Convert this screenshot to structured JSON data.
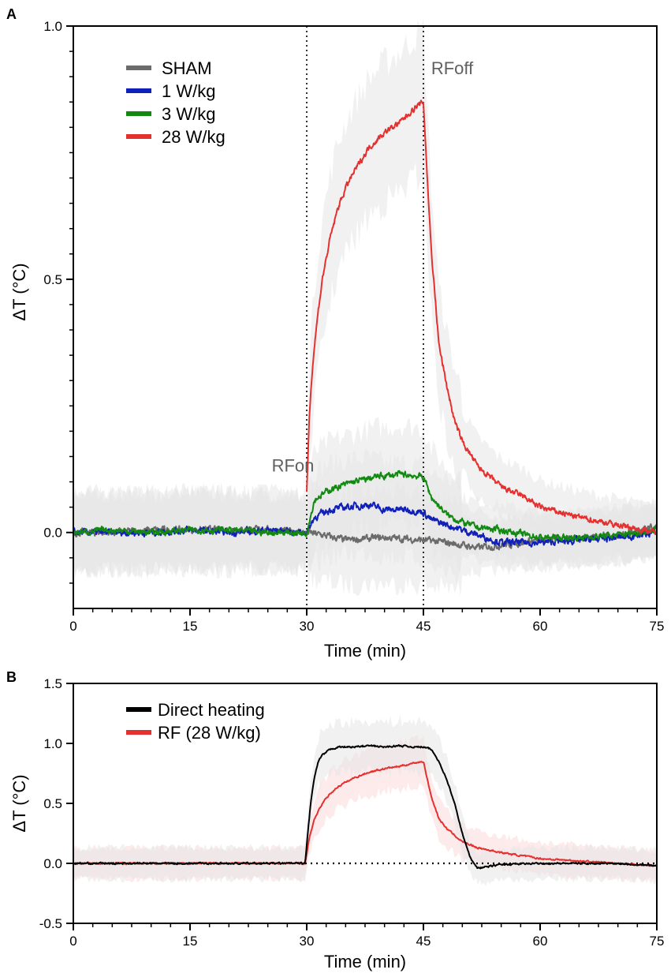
{
  "colors": {
    "sham": "#6b6b6b",
    "w1": "#1020b8",
    "w3": "#128a12",
    "w28": "#e53030",
    "direct": "#000000",
    "rf": "#e53030",
    "band_grey": "#e6e6e6",
    "band_pink": "#fbdcdc"
  },
  "chart_data": [
    {
      "panel": "A",
      "type": "line",
      "xlabel": "Time (min)",
      "ylabel": "ΔT (°C)",
      "xlim": [
        0,
        75
      ],
      "ylim": [
        -0.15,
        1.0
      ],
      "xticks": [
        0,
        15,
        30,
        45,
        60,
        75
      ],
      "xtick_labels": [
        "0",
        "15",
        "30",
        "45",
        "60",
        "75"
      ],
      "yticks": [
        0.0,
        0.5,
        1.0
      ],
      "ytick_labels": [
        "0.0",
        "0.5",
        "1.0"
      ],
      "vlines": [
        30,
        45
      ],
      "annotations": [
        {
          "text": "RFon",
          "x": 25.5,
          "y": 0.12
        },
        {
          "text": "RFoff",
          "x": 46.0,
          "y": 0.905
        }
      ],
      "series": [
        {
          "name": "SHAM",
          "color_key": "sham",
          "x": [
            0,
            5,
            10,
            15,
            20,
            25,
            30,
            32,
            35,
            40,
            45,
            48,
            50,
            52,
            55,
            60,
            65,
            70,
            75
          ],
          "y": [
            0.0,
            0.0,
            0.005,
            0.005,
            0.005,
            0.005,
            0.0,
            -0.005,
            -0.015,
            -0.01,
            -0.015,
            -0.02,
            -0.025,
            -0.03,
            -0.025,
            -0.015,
            -0.01,
            -0.005,
            0.01
          ]
        },
        {
          "name": "1 W/kg",
          "color_key": "w1",
          "x": [
            0,
            5,
            10,
            15,
            20,
            25,
            30,
            31,
            33,
            35,
            38,
            40,
            43,
            45,
            46,
            48,
            50,
            52,
            55,
            60,
            65,
            70,
            75
          ],
          "y": [
            0.0,
            0.0,
            0.0,
            0.005,
            0.0,
            0.005,
            0.0,
            0.03,
            0.045,
            0.05,
            0.055,
            0.045,
            0.045,
            0.04,
            0.025,
            0.015,
            0.005,
            -0.005,
            -0.02,
            -0.02,
            -0.015,
            -0.01,
            0.0
          ]
        },
        {
          "name": "3 W/kg",
          "color_key": "w3",
          "x": [
            0,
            5,
            10,
            15,
            20,
            25,
            30,
            31,
            33,
            36,
            39,
            42,
            45,
            46,
            48,
            50,
            52,
            55,
            60,
            65,
            70,
            75
          ],
          "y": [
            0.0,
            0.005,
            0.0,
            0.005,
            0.005,
            0.0,
            0.0,
            0.065,
            0.085,
            0.1,
            0.11,
            0.115,
            0.11,
            0.07,
            0.035,
            0.02,
            0.01,
            0.005,
            -0.01,
            -0.01,
            -0.005,
            0.005
          ]
        },
        {
          "name": "28 W/kg",
          "color_key": "w28",
          "x": [
            30,
            30.3,
            30.7,
            31,
            31.5,
            32,
            33,
            34,
            35,
            36,
            38,
            40,
            42,
            44,
            45,
            45.5,
            46,
            47,
            48,
            49,
            50,
            52,
            55,
            58,
            60,
            65,
            70,
            75
          ],
          "y": [
            0.08,
            0.22,
            0.32,
            0.37,
            0.44,
            0.5,
            0.58,
            0.64,
            0.68,
            0.71,
            0.76,
            0.79,
            0.81,
            0.84,
            0.85,
            0.7,
            0.56,
            0.37,
            0.29,
            0.22,
            0.18,
            0.13,
            0.09,
            0.07,
            0.05,
            0.03,
            0.015,
            0.0
          ]
        }
      ],
      "legend": [
        "SHAM",
        "1 W/kg",
        "3 W/kg",
        "28 W/kg"
      ],
      "legend_position": "top-left"
    },
    {
      "panel": "B",
      "type": "line",
      "xlabel": "Time (min)",
      "ylabel": "ΔT (°C)",
      "xlim": [
        0,
        75
      ],
      "ylim": [
        -0.5,
        1.5
      ],
      "xticks": [
        0,
        15,
        30,
        45,
        60,
        75
      ],
      "xtick_labels": [
        "0",
        "15",
        "30",
        "45",
        "60",
        "75"
      ],
      "yticks": [
        -0.5,
        0.0,
        0.5,
        1.0,
        1.5
      ],
      "ytick_labels": [
        "-0.5",
        "0.0",
        "0.5",
        "1.0",
        "1.5"
      ],
      "hline": 0.0,
      "series": [
        {
          "name": "Direct heating",
          "color_key": "direct",
          "x": [
            0,
            10,
            20,
            29.8,
            30.2,
            30.6,
            31,
            31.5,
            32,
            33,
            34,
            36,
            38,
            40,
            42,
            44,
            45,
            46,
            47,
            48,
            49,
            50,
            51,
            52,
            55,
            60,
            65,
            70,
            75
          ],
          "y": [
            0.0,
            0.0,
            0.0,
            0.0,
            0.3,
            0.55,
            0.72,
            0.85,
            0.9,
            0.95,
            0.97,
            0.97,
            0.98,
            0.97,
            0.98,
            0.97,
            0.97,
            0.95,
            0.85,
            0.7,
            0.5,
            0.25,
            0.05,
            -0.04,
            -0.01,
            0.0,
            0.0,
            0.0,
            -0.02
          ]
        },
        {
          "name": "RF (28 W/kg)",
          "color_key": "rf",
          "x": [
            0,
            10,
            20,
            29.8,
            30.3,
            31,
            32,
            33,
            34,
            36,
            38,
            40,
            42,
            44,
            45,
            45.5,
            46,
            47,
            48,
            50,
            52,
            55,
            58,
            60,
            65,
            70,
            75
          ],
          "y": [
            0.0,
            0.0,
            0.0,
            0.0,
            0.2,
            0.37,
            0.5,
            0.58,
            0.64,
            0.71,
            0.76,
            0.79,
            0.81,
            0.84,
            0.85,
            0.7,
            0.56,
            0.37,
            0.29,
            0.18,
            0.13,
            0.09,
            0.06,
            0.04,
            0.02,
            0.0,
            -0.02
          ]
        }
      ],
      "legend": [
        "Direct heating",
        "RF (28 W/kg)"
      ],
      "legend_position": "top-left"
    }
  ]
}
